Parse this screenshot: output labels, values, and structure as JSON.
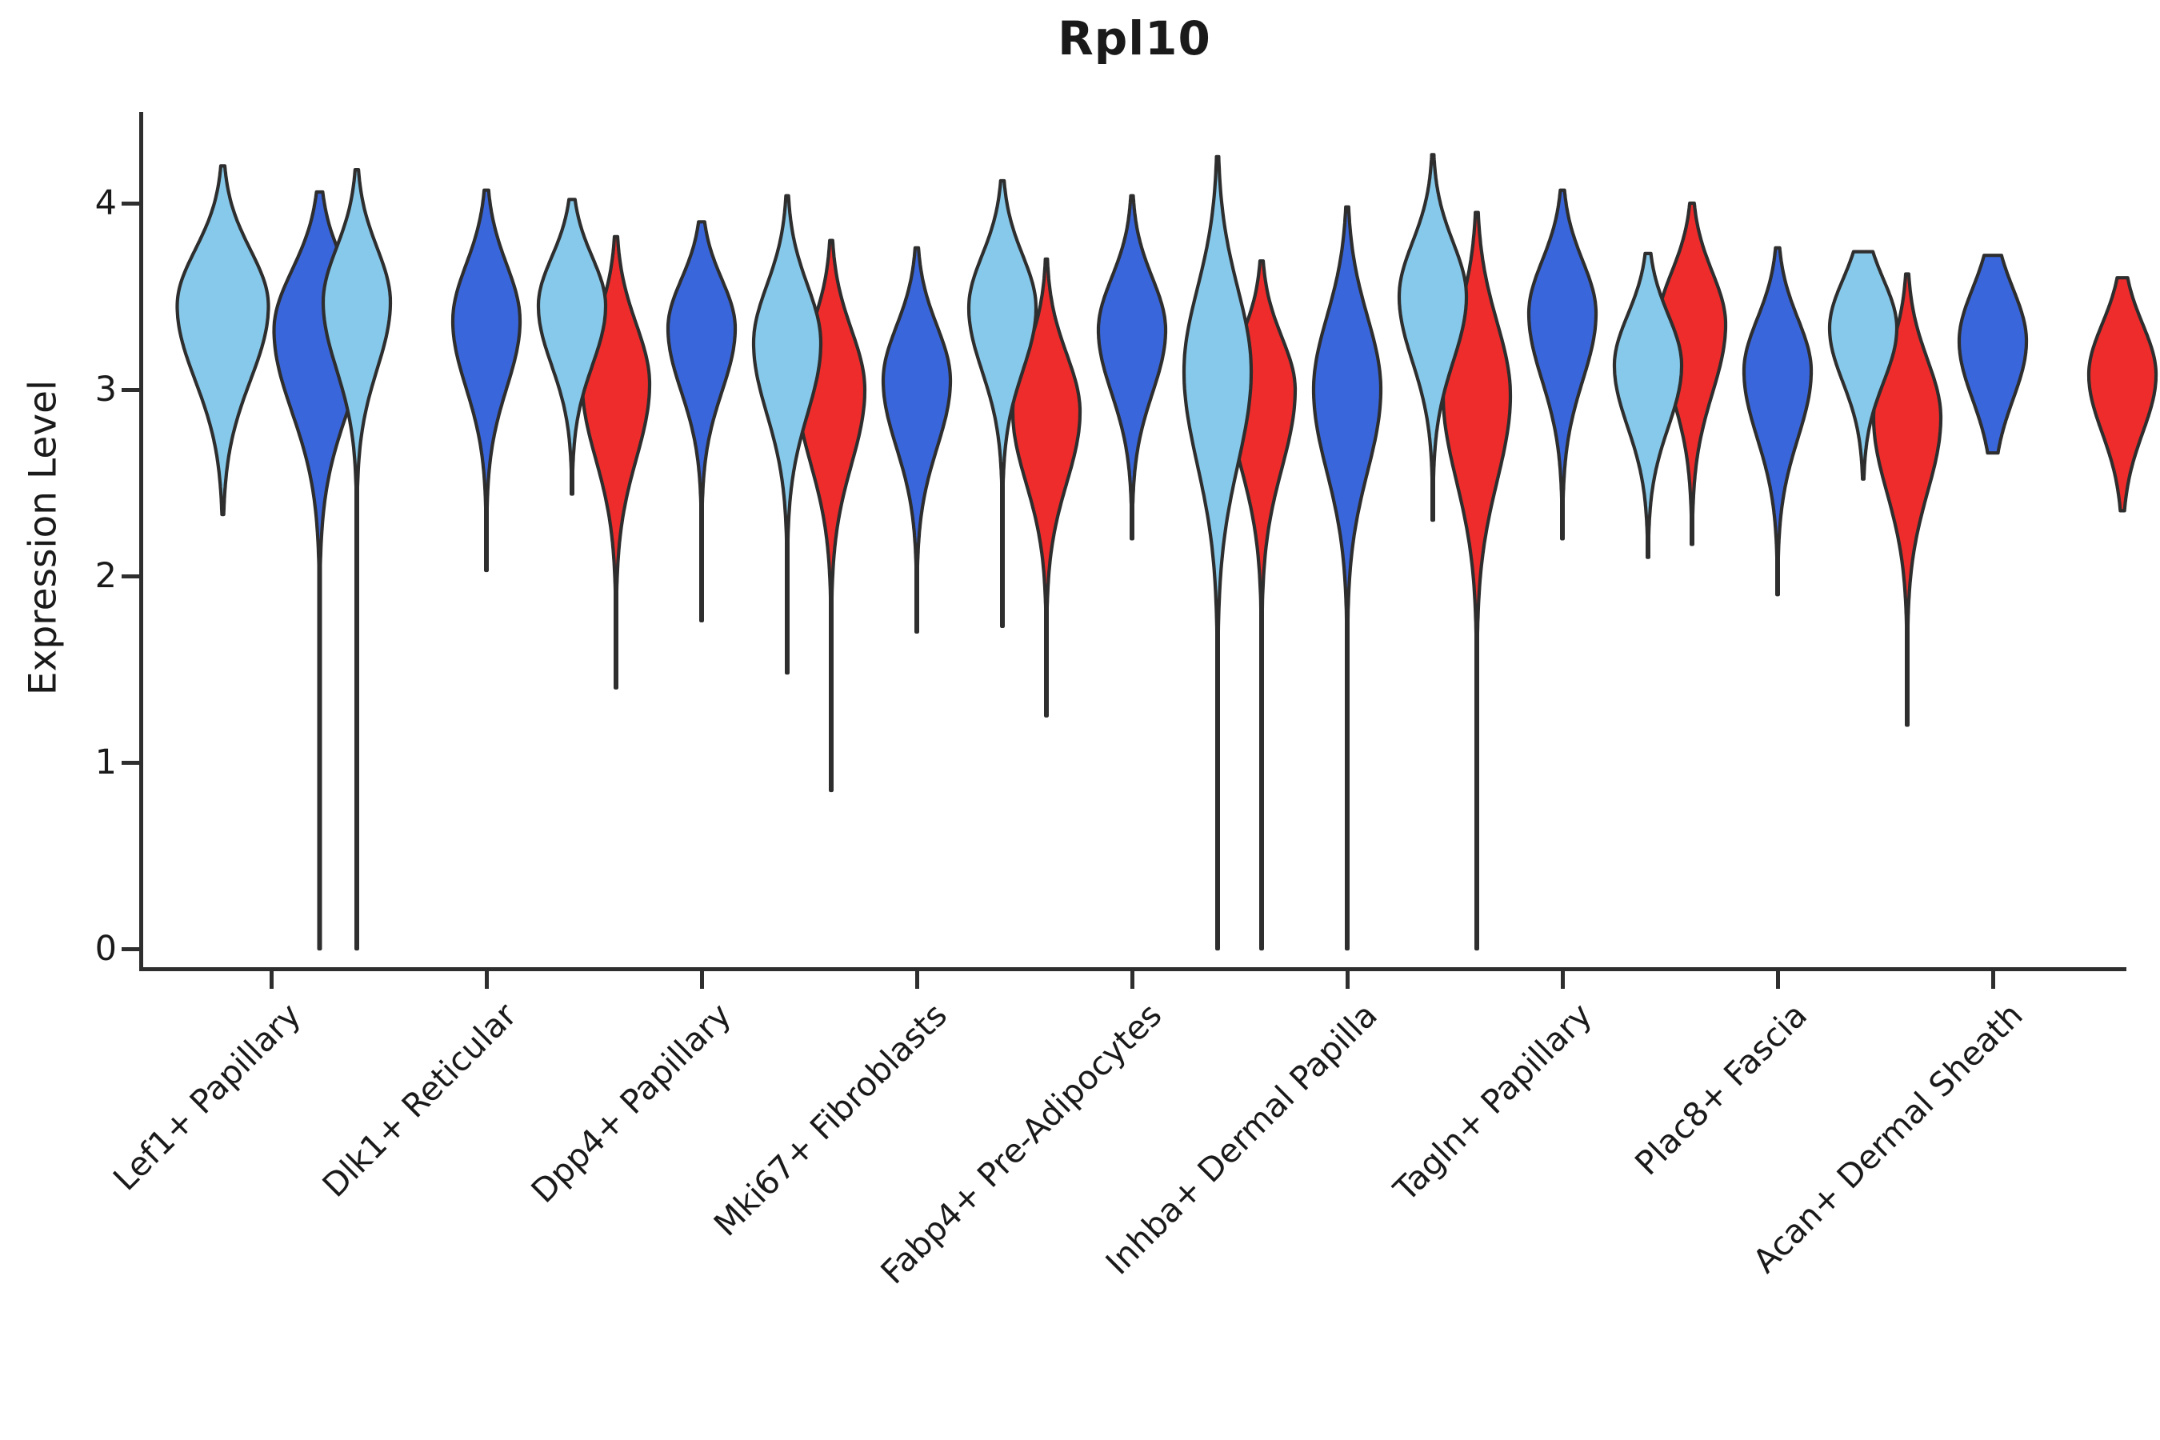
{
  "title": "Rpl10",
  "axis": {
    "y_label": "Expression Level",
    "y_ticks": [
      "0",
      "1",
      "2",
      "3",
      "4"
    ],
    "y_tick_values": [
      0,
      1,
      2,
      3,
      4
    ]
  },
  "colors": {
    "light_blue": "#87C9EA",
    "blue": "#3A66DB",
    "red": "#EE2C2C",
    "outline": "#2E2E2E",
    "text": "#1a1a1a"
  },
  "chart_data": {
    "type": "violin",
    "title": "Rpl10",
    "ylabel": "Expression Level",
    "ylim": [
      0,
      4.49
    ],
    "grid": false,
    "legend": "none",
    "splits": [
      "light_blue",
      "blue",
      "red"
    ],
    "categories": [
      "Lef1+ Papillary",
      "Dlk1+ Reticular",
      "Dpp4+ Papillary",
      "Mki67+ Fibroblasts",
      "Fabp4+ Pre-Adipocytes",
      "Inhba+ Dermal Papilla",
      "Tagln+ Papillary",
      "Plac8+ Fascia",
      "Acan+ Dermal Sheath"
    ],
    "groups": [
      {
        "label": "Lef1+ Papillary",
        "violins": [
          {
            "split": "light_blue",
            "max": 4.2,
            "min": 2.33,
            "peak": 3.45,
            "spread_up": 0.3,
            "spread_dn": 0.4
          },
          {
            "split": "blue",
            "max": 4.06,
            "min": 0.0,
            "peak": 3.32,
            "spread_up": 0.32,
            "spread_dn": 0.44
          }
        ]
      },
      {
        "label": "Dlk1+ Reticular",
        "violins": [
          {
            "split": "light_blue",
            "max": 4.18,
            "min": 0.0,
            "peak": 3.47,
            "spread_up": 0.29,
            "spread_dn": 0.36
          },
          {
            "split": "blue",
            "max": 4.07,
            "min": 2.03,
            "peak": 3.37,
            "spread_up": 0.3,
            "spread_dn": 0.36
          },
          {
            "split": "red",
            "max": 3.82,
            "min": 1.4,
            "peak": 3.03,
            "spread_up": 0.32,
            "spread_dn": 0.4
          }
        ]
      },
      {
        "label": "Dpp4+ Papillary",
        "violins": [
          {
            "split": "light_blue",
            "max": 4.02,
            "min": 2.44,
            "peak": 3.45,
            "spread_up": 0.26,
            "spread_dn": 0.32
          },
          {
            "split": "blue",
            "max": 3.9,
            "min": 1.76,
            "peak": 3.33,
            "spread_up": 0.26,
            "spread_dn": 0.34
          },
          {
            "split": "red",
            "max": 3.8,
            "min": 0.85,
            "peak": 3.0,
            "spread_up": 0.32,
            "spread_dn": 0.4
          }
        ]
      },
      {
        "label": "Mki67+ Fibroblasts",
        "violins": [
          {
            "split": "light_blue",
            "max": 4.04,
            "min": 1.48,
            "peak": 3.25,
            "spread_up": 0.31,
            "spread_dn": 0.38
          },
          {
            "split": "blue",
            "max": 3.76,
            "min": 1.7,
            "peak": 3.05,
            "spread_up": 0.29,
            "spread_dn": 0.36
          },
          {
            "split": "red",
            "max": 3.7,
            "min": 1.25,
            "peak": 2.88,
            "spread_up": 0.31,
            "spread_dn": 0.38
          }
        ]
      },
      {
        "label": "Fabp4+ Pre-Adipocytes",
        "violins": [
          {
            "split": "light_blue",
            "max": 4.12,
            "min": 1.73,
            "peak": 3.44,
            "spread_up": 0.28,
            "spread_dn": 0.34
          },
          {
            "split": "blue",
            "max": 4.04,
            "min": 2.2,
            "peak": 3.32,
            "spread_up": 0.28,
            "spread_dn": 0.34
          },
          {
            "split": "red",
            "max": 3.69,
            "min": 0.0,
            "peak": 3.0,
            "spread_up": 0.28,
            "spread_dn": 0.42
          }
        ]
      },
      {
        "label": "Inhba+ Dermal Papilla",
        "violins": [
          {
            "split": "light_blue",
            "max": 4.25,
            "min": 0.0,
            "peak": 3.1,
            "spread_up": 0.44,
            "spread_dn": 0.5
          },
          {
            "split": "blue",
            "max": 3.98,
            "min": 0.0,
            "peak": 3.0,
            "spread_up": 0.39,
            "spread_dn": 0.44
          },
          {
            "split": "red",
            "max": 3.95,
            "min": 0.0,
            "peak": 2.97,
            "spread_up": 0.39,
            "spread_dn": 0.46
          }
        ]
      },
      {
        "label": "Tagln+ Papillary",
        "violins": [
          {
            "split": "light_blue",
            "max": 4.26,
            "min": 2.3,
            "peak": 3.5,
            "spread_up": 0.29,
            "spread_dn": 0.35
          },
          {
            "split": "blue",
            "max": 4.07,
            "min": 2.2,
            "peak": 3.41,
            "spread_up": 0.28,
            "spread_dn": 0.36
          },
          {
            "split": "red",
            "max": 4.0,
            "min": 2.17,
            "peak": 3.35,
            "spread_up": 0.28,
            "spread_dn": 0.37
          }
        ]
      },
      {
        "label": "Plac8+ Fascia",
        "violins": [
          {
            "split": "light_blue",
            "max": 3.73,
            "min": 2.1,
            "peak": 3.13,
            "spread_up": 0.27,
            "spread_dn": 0.33
          },
          {
            "split": "blue",
            "max": 3.76,
            "min": 1.9,
            "peak": 3.1,
            "spread_up": 0.28,
            "spread_dn": 0.36
          },
          {
            "split": "red",
            "max": 3.62,
            "min": 1.2,
            "peak": 2.85,
            "spread_up": 0.31,
            "spread_dn": 0.4
          }
        ]
      },
      {
        "label": "Acan+ Dermal Sheath",
        "violins": [
          {
            "split": "light_blue",
            "max": 3.74,
            "min": 2.52,
            "peak": 3.33,
            "spread_up": 0.26,
            "spread_dn": 0.29
          },
          {
            "split": "blue",
            "max": 3.72,
            "min": 2.66,
            "peak": 3.26,
            "spread_up": 0.28,
            "spread_dn": 0.31
          },
          {
            "split": "red",
            "max": 3.6,
            "min": 2.35,
            "peak": 3.08,
            "spread_up": 0.27,
            "spread_dn": 0.31
          }
        ]
      }
    ]
  }
}
